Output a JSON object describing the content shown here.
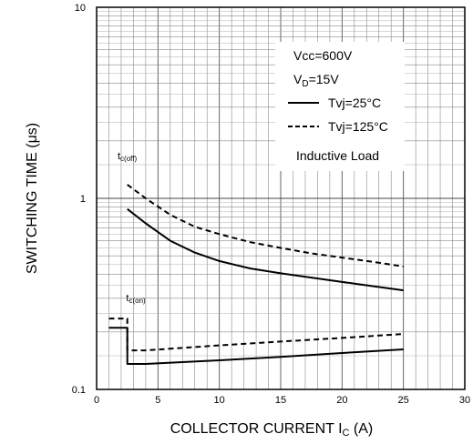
{
  "chart_data": {
    "type": "line",
    "title": "",
    "xlabel": {
      "main": "COLLECTOR CURRENT I",
      "sub": "C",
      "unit": " (A)"
    },
    "ylabel": "SWITCHING TIME (μs)",
    "xlim": [
      0,
      30
    ],
    "ylim": [
      0.1,
      10
    ],
    "yscale": "log",
    "grid": true,
    "x_ticks": [
      "0",
      "5",
      "10",
      "15",
      "20",
      "25",
      "30"
    ],
    "y_ticks": [
      "0.1",
      "1",
      "10"
    ],
    "legend": {
      "placement": "top-right",
      "conditions": [
        {
          "main": "Vcc=600V"
        },
        {
          "main": "V",
          "sub": "D",
          "rest": "=15V"
        }
      ],
      "entries": [
        {
          "name": "Tvj=25°C",
          "style": "solid"
        },
        {
          "name": "Tvj=125°C",
          "style": "dashed"
        }
      ],
      "note": "Inductive Load"
    },
    "annotations": [
      {
        "main": "t",
        "sub": "c(off)",
        "x": 2.3,
        "y": 1.6
      },
      {
        "main": "t",
        "sub": "c(on)",
        "x": 3.0,
        "y": 0.29
      }
    ],
    "series": [
      {
        "name": "Tvj=25°C",
        "group": "tc(off)",
        "style": "solid",
        "x": [
          2.5,
          4,
          6,
          8,
          10,
          12.5,
          15,
          17.5,
          20,
          22.5,
          25
        ],
        "y": [
          0.88,
          0.74,
          0.6,
          0.52,
          0.47,
          0.43,
          0.405,
          0.385,
          0.365,
          0.347,
          0.33
        ]
      },
      {
        "name": "Tvj=125°C",
        "group": "tc(off)",
        "style": "dashed",
        "x": [
          2.5,
          4,
          6,
          8,
          10,
          12.5,
          15,
          17.5,
          20,
          22.5,
          25
        ],
        "y": [
          1.18,
          1.0,
          0.82,
          0.71,
          0.65,
          0.59,
          0.55,
          0.515,
          0.49,
          0.465,
          0.44
        ]
      },
      {
        "name": "Tvj=25°C",
        "group": "tc(on)",
        "style": "solid",
        "x": [
          1,
          2.5,
          2.5,
          4,
          10,
          15,
          20,
          25
        ],
        "y": [
          0.21,
          0.21,
          0.136,
          0.136,
          0.142,
          0.148,
          0.155,
          0.162
        ]
      },
      {
        "name": "Tvj=125°C",
        "group": "tc(on)",
        "style": "dashed",
        "x": [
          1,
          2.5,
          2.5,
          4,
          10,
          15,
          20,
          25
        ],
        "y": [
          0.235,
          0.235,
          0.16,
          0.16,
          0.17,
          0.178,
          0.186,
          0.195
        ]
      }
    ]
  }
}
